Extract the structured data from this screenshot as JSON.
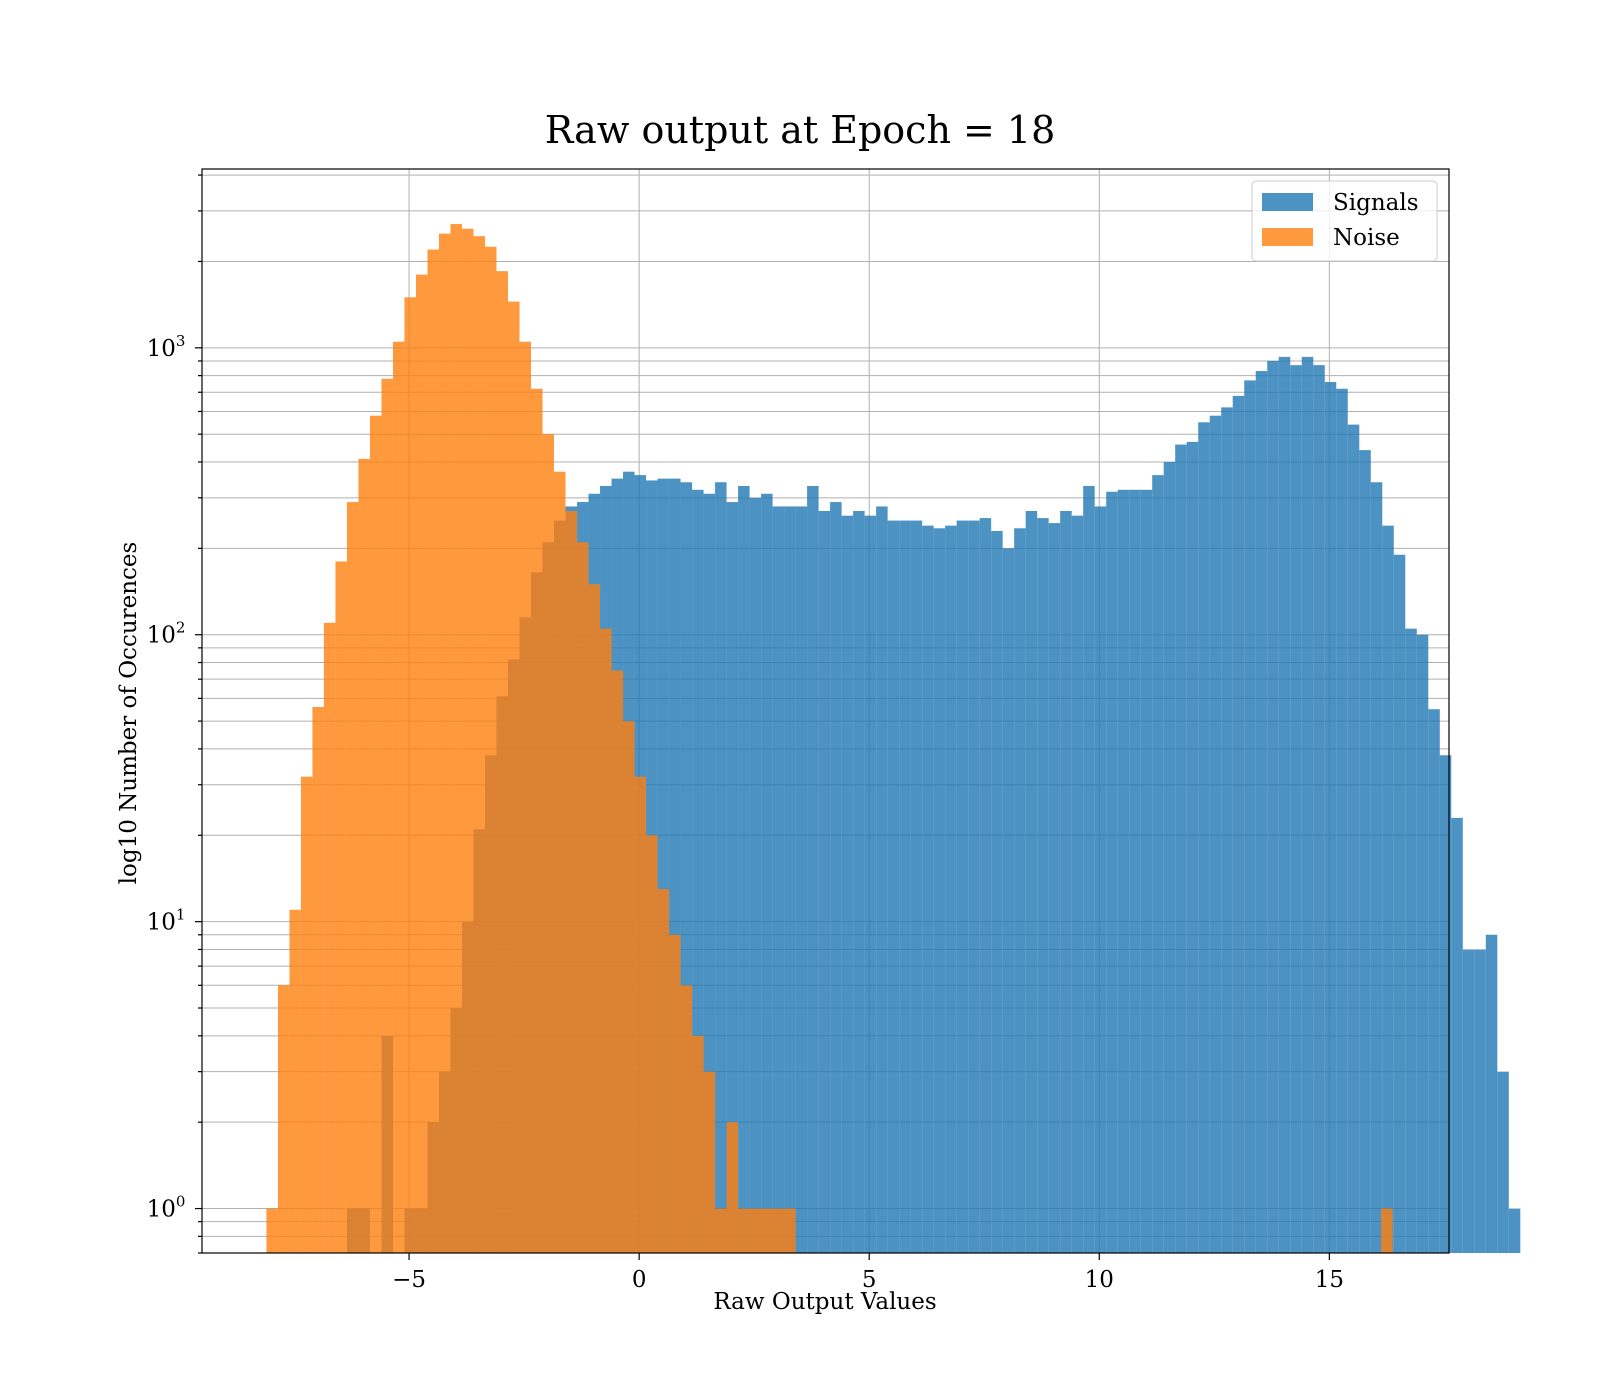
{
  "chart_data": {
    "type": "bar",
    "histogram": true,
    "title": "Raw output at Epoch = 18",
    "xlabel": "Raw Output Values",
    "ylabel": "log10 Number of Occurences",
    "xlim": [
      -9.5,
      17.6
    ],
    "ylim": [
      0.7,
      4200
    ],
    "yscale": "log",
    "grid": true,
    "legend_position": "top-right",
    "x_ticks": [
      {
        "value": -5,
        "label": "−5"
      },
      {
        "value": 0,
        "label": "0"
      },
      {
        "value": 5,
        "label": "5"
      },
      {
        "value": 10,
        "label": "10"
      },
      {
        "value": 15,
        "label": "15"
      }
    ],
    "y_ticks": [
      {
        "value": 1,
        "base": "10",
        "exp": "0"
      },
      {
        "value": 10,
        "base": "10",
        "exp": "1"
      },
      {
        "value": 100,
        "base": "10",
        "exp": "2"
      },
      {
        "value": 1000,
        "base": "10",
        "exp": "3"
      }
    ],
    "series": [
      {
        "name": "Signals",
        "color": "#1f77b4",
        "opacity": 0.8,
        "bin_start": -6.35,
        "bin_width": 0.25,
        "values": [
          1,
          1,
          0,
          4,
          0,
          1,
          1,
          2,
          3,
          5,
          10,
          21,
          38,
          61,
          82,
          115,
          165,
          210,
          250,
          280,
          290,
          310,
          330,
          350,
          370,
          360,
          345,
          350,
          350,
          340,
          320,
          310,
          340,
          290,
          330,
          300,
          310,
          280,
          280,
          280,
          330,
          270,
          290,
          260,
          270,
          260,
          280,
          250,
          250,
          250,
          240,
          235,
          240,
          250,
          250,
          255,
          230,
          200,
          235,
          270,
          255,
          245,
          270,
          260,
          330,
          280,
          315,
          320,
          320,
          320,
          360,
          400,
          460,
          470,
          550,
          580,
          620,
          680,
          770,
          830,
          900,
          930,
          870,
          930,
          870,
          760,
          720,
          540,
          440,
          340,
          240,
          190,
          105,
          100,
          55,
          38,
          23,
          8,
          8,
          9,
          3,
          1
        ]
      },
      {
        "name": "Noise",
        "color": "#ff7f0e",
        "opacity": 0.8,
        "bin_start": -8.1,
        "bin_width": 0.25,
        "values": [
          1,
          6,
          11,
          32,
          56,
          110,
          180,
          290,
          410,
          580,
          780,
          1050,
          1500,
          1800,
          2200,
          2500,
          2700,
          2600,
          2450,
          2250,
          1850,
          1450,
          1050,
          720,
          500,
          370,
          270,
          210,
          150,
          105,
          75,
          50,
          32,
          20,
          13,
          9,
          6,
          4,
          3,
          1,
          2,
          1,
          1,
          1,
          1,
          1
        ],
        "outliers": [
          {
            "x": 16.25,
            "count": 1
          }
        ]
      }
    ]
  }
}
